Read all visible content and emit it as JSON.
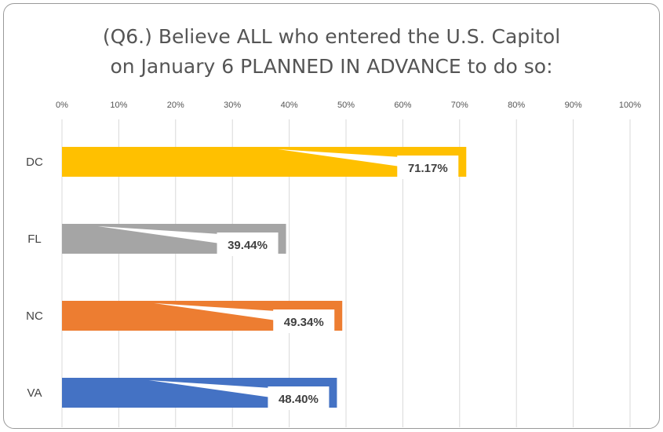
{
  "chart_data": {
    "type": "bar",
    "orientation": "horizontal",
    "title_lines": [
      "(Q6.) Believe ALL who entered the U.S. Capitol",
      "on January 6 PLANNED IN ADVANCE to do so:"
    ],
    "categories": [
      "DC",
      "FL",
      "NC",
      "VA"
    ],
    "values": [
      71.17,
      39.44,
      49.34,
      48.4
    ],
    "value_labels": [
      "71.17%",
      "39.44%",
      "49.34%",
      "48.40%"
    ],
    "colors": [
      "#FFC000",
      "#A5A5A5",
      "#ED7D31",
      "#4472C4"
    ],
    "xlim": [
      0,
      100
    ],
    "x_ticks": [
      "0%",
      "10%",
      "20%",
      "30%",
      "40%",
      "50%",
      "60%",
      "70%",
      "80%",
      "90%",
      "100%"
    ],
    "x_tick_values": [
      0,
      10,
      20,
      30,
      40,
      50,
      60,
      70,
      80,
      90,
      100
    ],
    "grid": true,
    "legend": "none",
    "xlabel": "",
    "ylabel": ""
  }
}
